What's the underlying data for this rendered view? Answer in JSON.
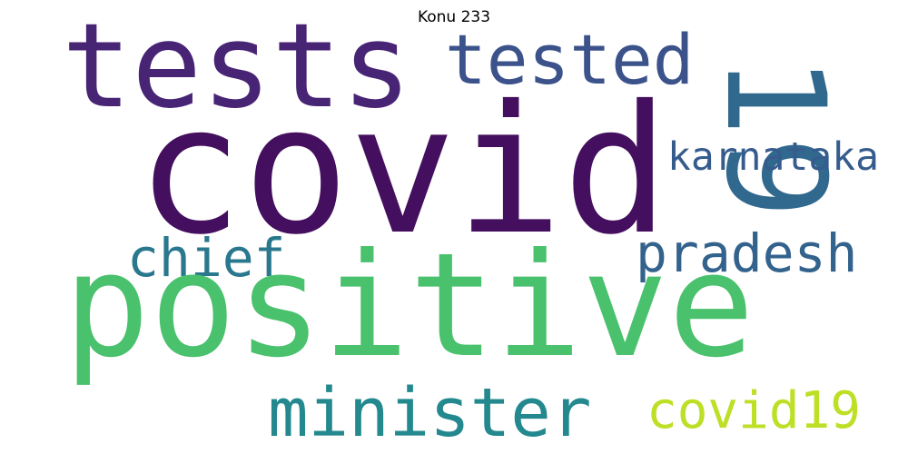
{
  "title": "Konu 233",
  "words": [
    {
      "key": "tests",
      "text": "tests",
      "color": "#482475"
    },
    {
      "key": "tested",
      "text": "tested",
      "color": "#3b528b"
    },
    {
      "key": "19",
      "text": "19",
      "color": "#31688e"
    },
    {
      "key": "covid",
      "text": "covid",
      "color": "#440f5e"
    },
    {
      "key": "karnataka",
      "text": "karnataka",
      "color": "#365c8d"
    },
    {
      "key": "chief",
      "text": "chief",
      "color": "#2a788e"
    },
    {
      "key": "pradesh",
      "text": "pradesh",
      "color": "#33638d"
    },
    {
      "key": "positive",
      "text": "positive",
      "color": "#4ac16d"
    },
    {
      "key": "minister",
      "text": "minister",
      "color": "#23898e"
    },
    {
      "key": "covid19",
      "text": "covid19",
      "color": "#bddf26"
    }
  ]
}
